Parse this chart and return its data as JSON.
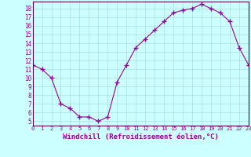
{
  "x": [
    0,
    1,
    2,
    3,
    4,
    5,
    6,
    7,
    8,
    9,
    10,
    11,
    12,
    13,
    14,
    15,
    16,
    17,
    18,
    19,
    20,
    21,
    22,
    23
  ],
  "y": [
    11.5,
    11.0,
    10.0,
    7.0,
    6.5,
    5.5,
    5.5,
    5.0,
    5.5,
    9.5,
    11.5,
    13.5,
    14.5,
    15.5,
    16.5,
    17.5,
    17.8,
    18.0,
    18.5,
    18.0,
    17.5,
    16.5,
    13.5,
    11.5
  ],
  "line_color": "#990099",
  "marker": "+",
  "marker_size": 4,
  "background_color": "#ccffff",
  "grid_color": "#aadddd",
  "xlabel": "Windchill (Refroidissement éolien,°C)",
  "xlabel_fontsize": 6.5,
  "yticks": [
    5,
    6,
    7,
    8,
    9,
    10,
    11,
    12,
    13,
    14,
    15,
    16,
    17,
    18
  ],
  "xticks": [
    0,
    1,
    2,
    3,
    4,
    5,
    6,
    7,
    8,
    9,
    10,
    11,
    12,
    13,
    14,
    15,
    16,
    17,
    18,
    19,
    20,
    21,
    22,
    23
  ],
  "xlim": [
    0,
    23
  ],
  "ylim": [
    4.5,
    18.8
  ]
}
